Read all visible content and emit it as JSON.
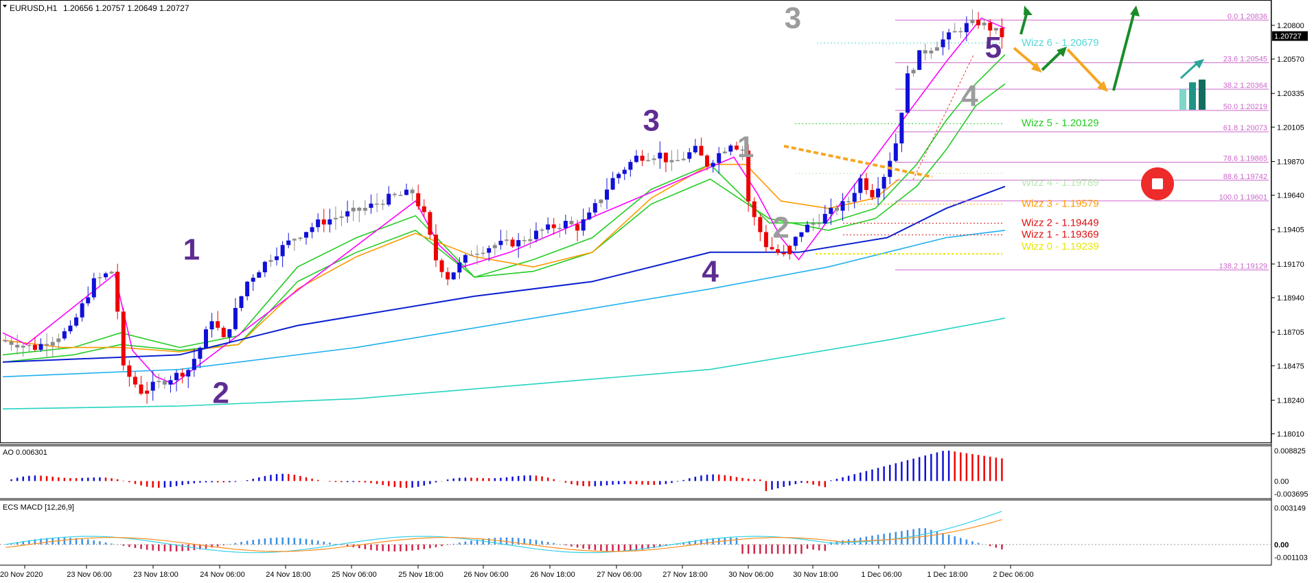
{
  "header": {
    "symbol_label": "EURUSD,H1",
    "ohlc_label": "1.20656 1.20757 1.20649 1.20727"
  },
  "colors": {
    "bull": "#1010d8",
    "bear": "#ee0000",
    "neutral": "#8a8a8a",
    "ema_green": "#22cc22",
    "ema_orange": "#ff9900",
    "ema_blue": "#0a1fd0",
    "ema_sky": "#1fb0f0",
    "ema_teal": "#23d3c0",
    "ema_magenta": "#ff00ff",
    "fib": "#cc66cc",
    "wave_purple": "#5e2d91",
    "wave_gray": "#9c9c9c",
    "arrow_green": "#1a8c2a",
    "arrow_orange": "#f5a623",
    "arrow_teal": "#2aa59a"
  },
  "chart_data": {
    "type": "candlestick",
    "symbol": "EURUSD",
    "timeframe": "H1",
    "price_axis": {
      "ticks": [
        "1.20800",
        "1.20570",
        "1.20335",
        "1.20105",
        "1.19870",
        "1.19640",
        "1.19405",
        "1.19170",
        "1.18940",
        "1.18705",
        "1.18475",
        "1.18240",
        "1.18010"
      ],
      "range": [
        1.17975,
        1.20945
      ],
      "current_price": "1.20727"
    },
    "time_axis": {
      "ticks": [
        "20 Nov 2020",
        "23 Nov 06:00",
        "23 Nov 18:00",
        "24 Nov 06:00",
        "24 Nov 18:00",
        "25 Nov 06:00",
        "25 Nov 18:00",
        "26 Nov 06:00",
        "26 Nov 18:00",
        "27 Nov 06:00",
        "27 Nov 18:00",
        "30 Nov 06:00",
        "30 Nov 18:00",
        "1 Dec 06:00",
        "1 Dec 18:00",
        "2 Dec 06:00"
      ]
    },
    "price_path": [
      [
        0,
        1.1865
      ],
      [
        6,
        1.186
      ],
      [
        12,
        1.1872
      ],
      [
        16,
        1.1905
      ],
      [
        19,
        1.1912
      ],
      [
        20,
        1.1885
      ],
      [
        21,
        1.1845
      ],
      [
        24,
        1.183
      ],
      [
        32,
        1.1845
      ],
      [
        34,
        1.186
      ],
      [
        36,
        1.188
      ],
      [
        38,
        1.1865
      ],
      [
        42,
        1.1905
      ],
      [
        46,
        1.1922
      ],
      [
        50,
        1.1935
      ],
      [
        54,
        1.1945
      ],
      [
        58,
        1.195
      ],
      [
        62,
        1.1955
      ],
      [
        66,
        1.1962
      ],
      [
        70,
        1.1966
      ],
      [
        72,
        1.195
      ],
      [
        74,
        1.192
      ],
      [
        76,
        1.1908
      ],
      [
        80,
        1.1925
      ],
      [
        84,
        1.193
      ],
      [
        88,
        1.1932
      ],
      [
        92,
        1.194
      ],
      [
        96,
        1.1945
      ],
      [
        98,
        1.1942
      ],
      [
        100,
        1.195
      ],
      [
        104,
        1.1975
      ],
      [
        108,
        1.199
      ],
      [
        112,
        1.1992
      ],
      [
        114,
        1.1985
      ],
      [
        118,
        1.1995
      ],
      [
        120,
        1.1985
      ],
      [
        124,
        1.2
      ],
      [
        126,
        1.1995
      ],
      [
        127,
        1.196
      ],
      [
        128,
        1.1948
      ],
      [
        130,
        1.193
      ],
      [
        133,
        1.1922
      ],
      [
        136,
        1.194
      ],
      [
        140,
        1.195
      ],
      [
        144,
        1.196
      ],
      [
        146,
        1.1975
      ],
      [
        148,
        1.1965
      ],
      [
        150,
        1.1978
      ],
      [
        152,
        1.2
      ],
      [
        154,
        1.2045
      ],
      [
        156,
        1.206
      ],
      [
        158,
        1.2065
      ],
      [
        160,
        1.207
      ],
      [
        162,
        1.2075
      ],
      [
        164,
        1.208
      ],
      [
        166,
        1.2082
      ],
      [
        168,
        1.2078
      ],
      [
        170,
        1.2073
      ]
    ],
    "moving_averages": [
      {
        "color_key": "ema_green",
        "points": [
          [
            0,
            1.1855
          ],
          [
            12,
            1.186
          ],
          [
            20,
            1.187
          ],
          [
            30,
            1.186
          ],
          [
            40,
            1.1868
          ],
          [
            50,
            1.1915
          ],
          [
            60,
            1.1935
          ],
          [
            70,
            1.195
          ],
          [
            80,
            1.1908
          ],
          [
            90,
            1.192
          ],
          [
            100,
            1.1935
          ],
          [
            110,
            1.1968
          ],
          [
            120,
            1.1985
          ],
          [
            130,
            1.1945
          ],
          [
            140,
            1.1945
          ],
          [
            148,
            1.1955
          ],
          [
            155,
            1.1985
          ],
          [
            160,
            1.2015
          ],
          [
            165,
            1.204
          ],
          [
            170,
            1.206
          ]
        ]
      },
      {
        "color_key": "ema_green",
        "points": [
          [
            0,
            1.185
          ],
          [
            12,
            1.1855
          ],
          [
            20,
            1.1862
          ],
          [
            30,
            1.1858
          ],
          [
            40,
            1.1862
          ],
          [
            50,
            1.1905
          ],
          [
            60,
            1.1925
          ],
          [
            70,
            1.194
          ],
          [
            80,
            1.1908
          ],
          [
            90,
            1.1912
          ],
          [
            100,
            1.1925
          ],
          [
            110,
            1.1958
          ],
          [
            120,
            1.1975
          ],
          [
            130,
            1.1948
          ],
          [
            140,
            1.194
          ],
          [
            148,
            1.1948
          ],
          [
            155,
            1.197
          ],
          [
            160,
            1.1995
          ],
          [
            165,
            1.2025
          ],
          [
            170,
            1.204
          ]
        ]
      },
      {
        "color_key": "ema_orange",
        "points": [
          [
            0,
            1.1865
          ],
          [
            10,
            1.186
          ],
          [
            20,
            1.186
          ],
          [
            30,
            1.1857
          ],
          [
            40,
            1.1862
          ],
          [
            50,
            1.19
          ],
          [
            60,
            1.1922
          ],
          [
            70,
            1.1938
          ],
          [
            80,
            1.1922
          ],
          [
            90,
            1.1915
          ],
          [
            100,
            1.1925
          ],
          [
            110,
            1.1962
          ],
          [
            120,
            1.1985
          ],
          [
            126,
            1.1985
          ],
          [
            132,
            1.196
          ],
          [
            140,
            1.1955
          ],
          [
            148,
            1.1962
          ],
          [
            152,
            1.1975
          ]
        ]
      },
      {
        "color_key": "ema_magenta",
        "points": [
          [
            0,
            1.187
          ],
          [
            4,
            1.1862
          ],
          [
            19,
            1.191
          ],
          [
            22,
            1.1858
          ],
          [
            26,
            1.184
          ],
          [
            29,
            1.1835
          ],
          [
            70,
            1.196
          ],
          [
            74,
            1.193
          ],
          [
            78,
            1.1915
          ],
          [
            86,
            1.1925
          ],
          [
            124,
            1.199
          ],
          [
            128,
            1.1965
          ],
          [
            132,
            1.1935
          ],
          [
            135,
            1.192
          ],
          [
            160,
            1.2055
          ],
          [
            166,
            1.2085
          ],
          [
            170,
            1.2078
          ]
        ]
      },
      {
        "color_key": "ema_blue",
        "points": [
          [
            0,
            1.185
          ],
          [
            30,
            1.1855
          ],
          [
            50,
            1.1875
          ],
          [
            80,
            1.1895
          ],
          [
            100,
            1.1905
          ],
          [
            120,
            1.1925
          ],
          [
            135,
            1.1925
          ],
          [
            150,
            1.1935
          ],
          [
            160,
            1.1955
          ],
          [
            170,
            1.197
          ]
        ]
      },
      {
        "color_key": "ema_sky",
        "points": [
          [
            0,
            1.184
          ],
          [
            30,
            1.1845
          ],
          [
            60,
            1.186
          ],
          [
            90,
            1.188
          ],
          [
            120,
            1.19
          ],
          [
            140,
            1.1915
          ],
          [
            160,
            1.1935
          ],
          [
            170,
            1.194
          ]
        ]
      },
      {
        "color_key": "ema_teal",
        "points": [
          [
            0,
            1.1818
          ],
          [
            30,
            1.182
          ],
          [
            60,
            1.1825
          ],
          [
            90,
            1.1835
          ],
          [
            120,
            1.1845
          ],
          [
            150,
            1.1865
          ],
          [
            170,
            1.188
          ]
        ]
      }
    ],
    "fibonacci": {
      "levels": [
        {
          "label": "0.0 1.20836",
          "price": 1.20836
        },
        {
          "label": "23.6 1.20545",
          "price": 1.20545
        },
        {
          "label": "38.2 1.20364",
          "price": 1.20364
        },
        {
          "label": "50.0 1.20219",
          "price": 1.20219
        },
        {
          "label": "61.8 1.20073",
          "price": 1.20073
        },
        {
          "label": "78.6 1.19865",
          "price": 1.19865
        },
        {
          "label": "88.6 1.19742",
          "price": 1.19742
        },
        {
          "label": "100.0 1.19601",
          "price": 1.19601
        },
        {
          "label": "138.2 1.19129",
          "price": 1.19129
        }
      ]
    },
    "wizz_levels": [
      {
        "label": "Wizz 6 - 1.20679",
        "price": 1.20679,
        "color": "#55d8d8"
      },
      {
        "label": "Wizz 5 - 1.20129",
        "price": 1.20129,
        "color": "#22cc22"
      },
      {
        "label": "Wizz 4 - 1.19789",
        "price": 1.19789,
        "color": "#b8e6b0"
      },
      {
        "label": "Wizz 3 - 1.19579",
        "price": 1.19579,
        "color": "#ff9900"
      },
      {
        "label": "Wizz 2 - 1.19449",
        "price": 1.19449,
        "color": "#dd1111"
      },
      {
        "label": "Wizz 1 - 1.19369",
        "price": 1.19369,
        "color": "#dd1111"
      },
      {
        "label": "Wizz 0 - 1.19239",
        "price": 1.19239,
        "color": "#e8e800"
      }
    ],
    "wave_labels": [
      {
        "text": "1",
        "style": "purple",
        "x": 32,
        "y": 1.192
      },
      {
        "text": "2",
        "style": "purple",
        "x": 37,
        "y": 1.1822
      },
      {
        "text": "3",
        "style": "purple",
        "x": 110,
        "y": 1.2008
      },
      {
        "text": "4",
        "style": "purple",
        "x": 120,
        "y": 1.1905
      },
      {
        "text": "5",
        "style": "purple",
        "x": 168,
        "y": 1.2058
      },
      {
        "text": "1",
        "style": "gray",
        "x": 126,
        "y": 1.199
      },
      {
        "text": "2",
        "style": "gray",
        "x": 132,
        "y": 1.1935
      },
      {
        "text": "3",
        "style": "gray",
        "x": 134,
        "y": 1.2078
      },
      {
        "text": "4",
        "style": "gray",
        "x": 164,
        "y": 1.2025
      }
    ],
    "ao": {
      "title": "AO 0.006301",
      "ticks": [
        "0.008825",
        "0.00",
        "-0.003695"
      ],
      "range": [
        -0.0045,
        0.0098
      ]
    },
    "macd": {
      "title": "ECS MACD [12,26,9]",
      "ticks": [
        "0.003149",
        "0.00",
        "-0.001103"
      ],
      "range": [
        -0.0016,
        0.0037
      ]
    }
  }
}
